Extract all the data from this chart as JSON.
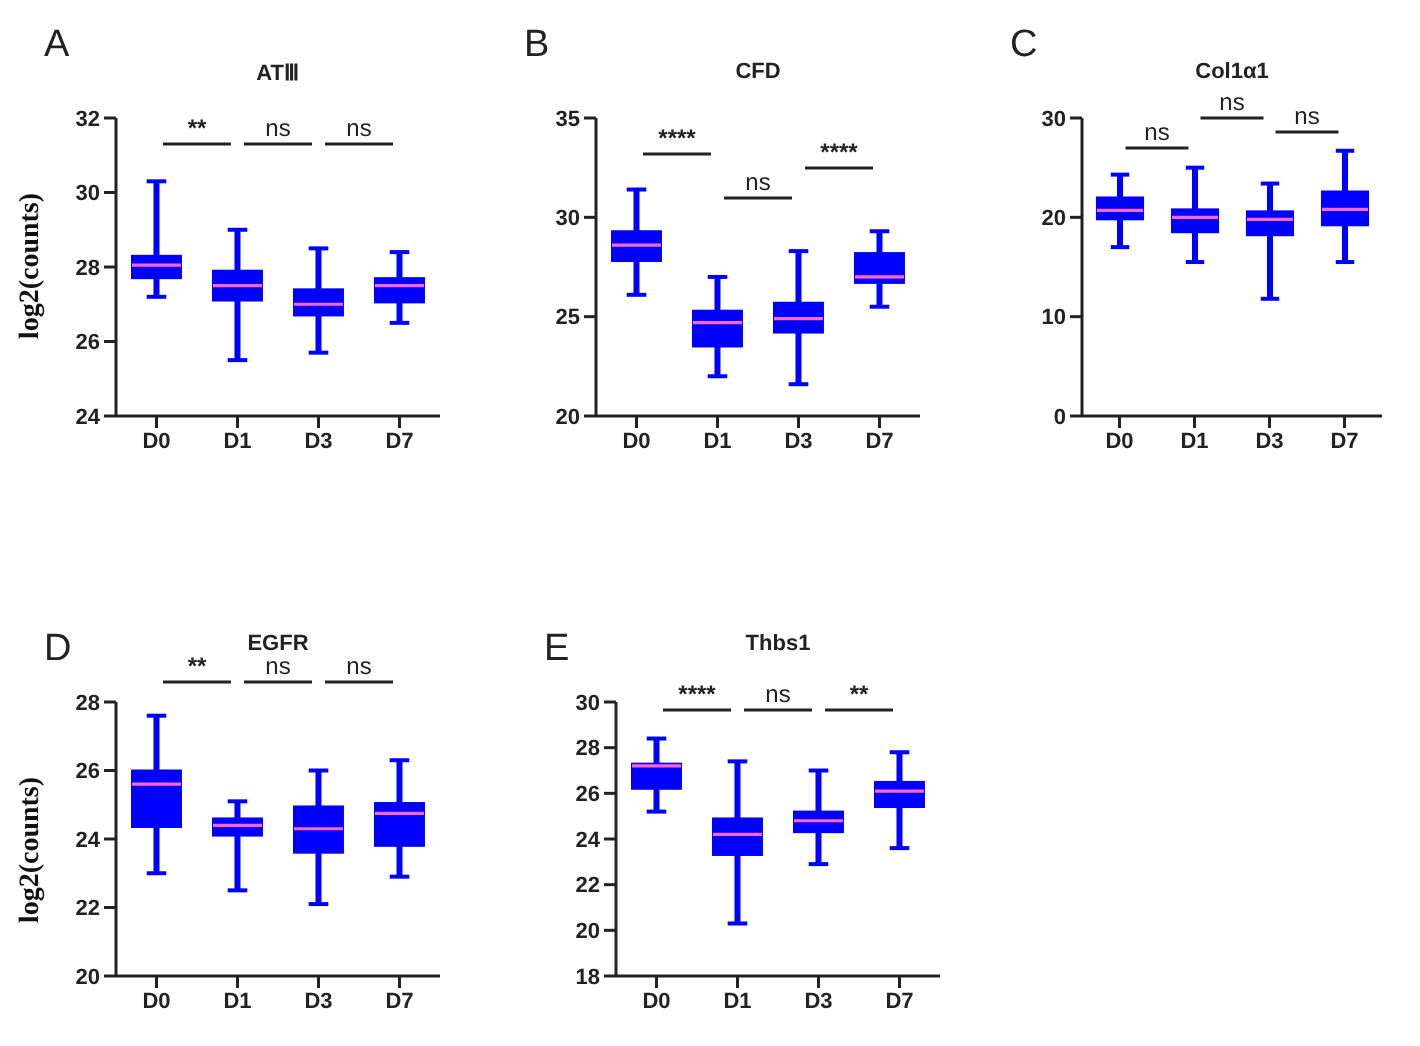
{
  "chart_data": [
    {
      "type": "box",
      "title": "ATⅢ",
      "ylabel": "log2(counts)",
      "categories": [
        "D0",
        "D1",
        "D3",
        "D7"
      ],
      "color": "#0000ff",
      "ylim": [
        24,
        32
      ],
      "yticks": [
        24,
        26,
        28,
        30,
        32
      ],
      "annotations": [
        "A",
        "**",
        "ns",
        "ns"
      ],
      "boxes": [
        {
          "low": 27.2,
          "q1": 27.7,
          "median": 28.05,
          "q3": 28.3,
          "high": 30.3
        },
        {
          "low": 25.5,
          "q1": 27.1,
          "median": 27.5,
          "q3": 27.9,
          "high": 29.0
        },
        {
          "low": 25.7,
          "q1": 26.7,
          "median": 27.0,
          "q3": 27.4,
          "high": 28.5
        },
        {
          "low": 26.5,
          "q1": 27.05,
          "median": 27.5,
          "q3": 27.7,
          "high": 28.4
        }
      ]
    },
    {
      "type": "box",
      "title": "CFD",
      "categories": [
        "D0",
        "D1",
        "D3",
        "D7"
      ],
      "color": "#0000ff",
      "ylim": [
        20,
        35
      ],
      "yticks": [
        20,
        25,
        30,
        35
      ],
      "annotations": [
        "B",
        "****",
        "ns",
        "****"
      ],
      "boxes": [
        {
          "low": 26.1,
          "q1": 27.8,
          "median": 28.6,
          "q3": 29.3,
          "high": 31.4
        },
        {
          "low": 22.0,
          "q1": 23.5,
          "median": 24.7,
          "q3": 25.3,
          "high": 27.0
        },
        {
          "low": 21.6,
          "q1": 24.2,
          "median": 24.9,
          "q3": 25.7,
          "high": 28.3
        },
        {
          "low": 25.5,
          "q1": 26.7,
          "median": 27.0,
          "q3": 28.2,
          "high": 29.3
        }
      ]
    },
    {
      "type": "box",
      "title": "Col1α1",
      "categories": [
        "D0",
        "D1",
        "D3",
        "D7"
      ],
      "color": "#0000ff",
      "ylim": [
        0,
        30
      ],
      "yticks": [
        0,
        10,
        20,
        30
      ],
      "annotations": [
        "C",
        "ns",
        "ns",
        "ns"
      ],
      "boxes": [
        {
          "low": 17,
          "q1": 19.8,
          "median": 20.7,
          "q3": 22,
          "high": 24.3
        },
        {
          "low": 15.5,
          "q1": 18.5,
          "median": 20,
          "q3": 20.8,
          "high": 25
        },
        {
          "low": 11.8,
          "q1": 18.2,
          "median": 19.8,
          "q3": 20.6,
          "high": 23.4
        },
        {
          "low": 15.5,
          "q1": 19.2,
          "median": 20.8,
          "q3": 22.6,
          "high": 26.7
        }
      ]
    },
    {
      "type": "box",
      "title": "EGFR",
      "ylabel": "log2(counts)",
      "categories": [
        "D0",
        "D1",
        "D3",
        "D7"
      ],
      "color": "#0000ff",
      "ylim": [
        20,
        28
      ],
      "yticks": [
        20,
        22,
        24,
        26,
        28
      ],
      "annotations": [
        "D",
        "**",
        "ns",
        "ns"
      ],
      "boxes": [
        {
          "low": 23.0,
          "q1": 24.35,
          "median": 25.6,
          "q3": 26.0,
          "high": 27.6
        },
        {
          "low": 22.5,
          "q1": 24.1,
          "median": 24.4,
          "q3": 24.6,
          "high": 25.1
        },
        {
          "low": 22.1,
          "q1": 23.6,
          "median": 24.3,
          "q3": 24.95,
          "high": 26.0
        },
        {
          "low": 22.9,
          "q1": 23.8,
          "median": 24.75,
          "q3": 25.05,
          "high": 26.3
        }
      ]
    },
    {
      "type": "box",
      "title": "Thbs1",
      "categories": [
        "D0",
        "D1",
        "D3",
        "D7"
      ],
      "color": "#0000ff",
      "ylim": [
        18,
        30
      ],
      "yticks": [
        18,
        20,
        22,
        24,
        26,
        28,
        30
      ],
      "annotations": [
        "E",
        "****",
        "ns",
        "**"
      ],
      "boxes": [
        {
          "low": 25.2,
          "q1": 26.2,
          "median": 27.2,
          "q3": 27.3,
          "high": 28.4
        },
        {
          "low": 20.3,
          "q1": 23.3,
          "median": 24.2,
          "q3": 24.9,
          "high": 27.4
        },
        {
          "low": 22.9,
          "q1": 24.3,
          "median": 24.8,
          "q3": 25.2,
          "high": 27.0
        },
        {
          "low": 23.6,
          "q1": 25.4,
          "median": 26.1,
          "q3": 26.5,
          "high": 27.8
        }
      ]
    }
  ]
}
